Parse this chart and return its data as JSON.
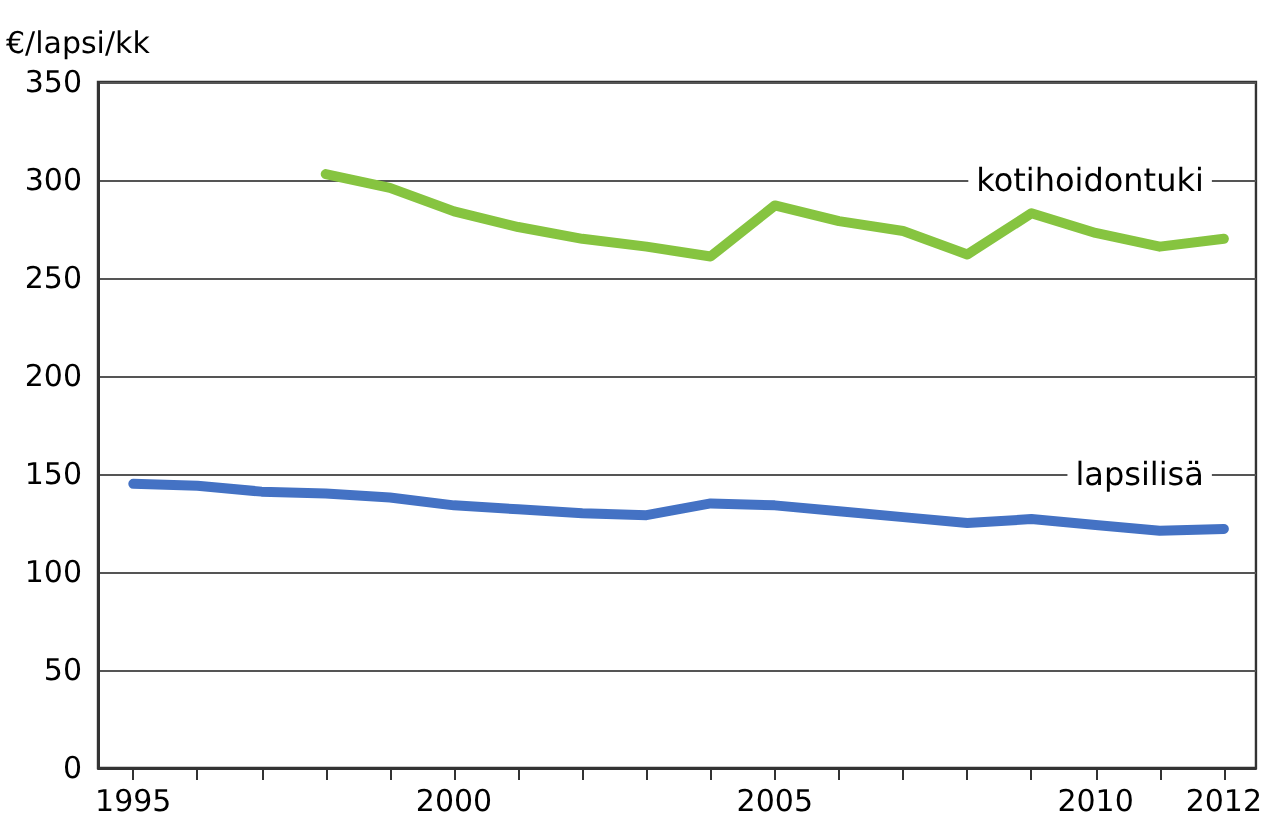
{
  "chart_data": {
    "type": "line",
    "ylabel": "€/lapsi/kk",
    "x": [
      1995,
      1996,
      1997,
      1998,
      1999,
      2000,
      2001,
      2002,
      2003,
      2004,
      2005,
      2006,
      2007,
      2008,
      2009,
      2010,
      2011,
      2012
    ],
    "series": [
      {
        "name": "kotihoidontuki",
        "color": "#86c440",
        "values": [
          null,
          null,
          null,
          303,
          296,
          284,
          276,
          270,
          266,
          261,
          287,
          279,
          274,
          262,
          283,
          273,
          266,
          270
        ]
      },
      {
        "name": "lapsilisä",
        "color": "#4472c4",
        "values": [
          145,
          144,
          141,
          140,
          138,
          134,
          132,
          130,
          129,
          135,
          134,
          131,
          128,
          125,
          127,
          124,
          121,
          122
        ]
      }
    ],
    "xlim": [
      1994.45,
      2012.5
    ],
    "xticks": [
      1995,
      {
        "value": 1996,
        "label": null
      },
      {
        "value": 1997,
        "label": null
      },
      {
        "value": 1998,
        "label": null
      },
      {
        "value": 1999,
        "label": null
      },
      2000,
      {
        "value": 2001,
        "label": null
      },
      {
        "value": 2002,
        "label": null
      },
      {
        "value": 2003,
        "label": null
      },
      {
        "value": 2004,
        "label": null
      },
      2005,
      {
        "value": 2006,
        "label": null
      },
      {
        "value": 2007,
        "label": null
      },
      {
        "value": 2008,
        "label": null
      },
      {
        "value": 2009,
        "label": null
      },
      2010,
      {
        "value": 2011,
        "label": null
      },
      2012
    ],
    "ylim": [
      0,
      350
    ],
    "yticks": [
      0,
      50,
      100,
      150,
      200,
      250,
      300,
      350
    ],
    "grid": "y",
    "legend": false,
    "marker": "none",
    "line_style": "solid"
  }
}
